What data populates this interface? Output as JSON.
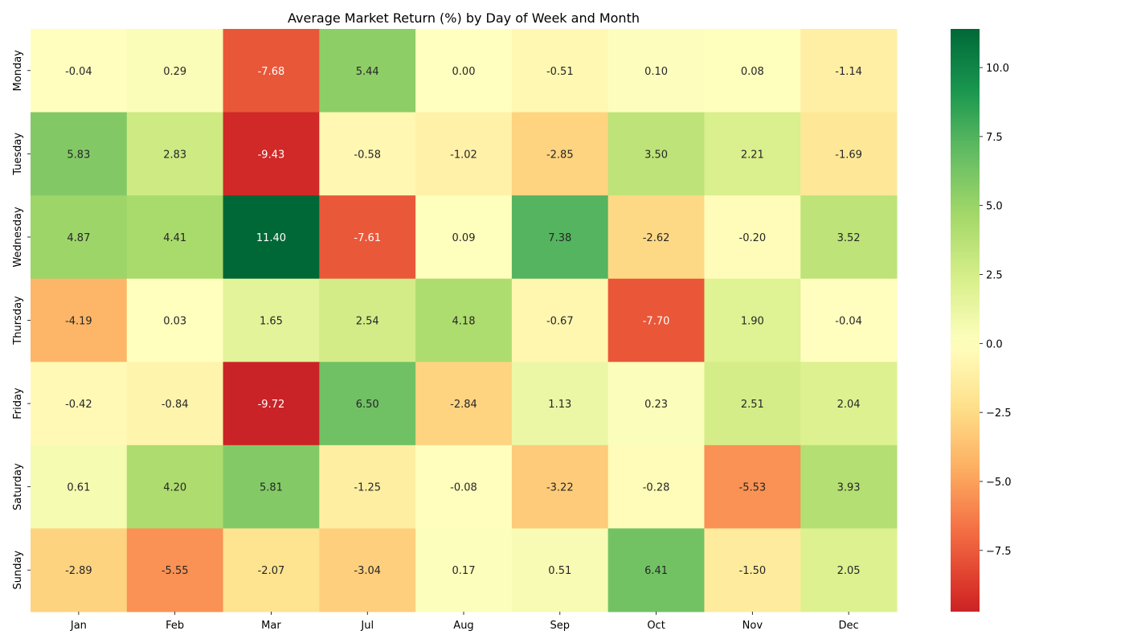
{
  "chart_data": {
    "type": "heatmap",
    "title": "Average Market Return (%) by Day of Week and Month",
    "xlabel": "",
    "ylabel": "",
    "x_categories": [
      "Jan",
      "Feb",
      "Mar",
      "Jul",
      "Aug",
      "Sep",
      "Oct",
      "Nov",
      "Dec"
    ],
    "y_categories": [
      "Monday",
      "Tuesday",
      "Wednesday",
      "Thursday",
      "Friday",
      "Saturday",
      "Sunday"
    ],
    "values": [
      [
        -0.04,
        0.29,
        -7.68,
        5.44,
        0.0,
        -0.51,
        0.1,
        0.08,
        -1.14
      ],
      [
        5.83,
        2.83,
        -9.43,
        -0.58,
        -1.02,
        -2.85,
        3.5,
        2.21,
        -1.69
      ],
      [
        4.87,
        4.41,
        11.4,
        -7.61,
        0.09,
        7.38,
        -2.62,
        -0.2,
        3.52
      ],
      [
        -4.19,
        0.03,
        1.65,
        2.54,
        4.18,
        -0.67,
        -7.7,
        1.9,
        -0.04
      ],
      [
        -0.42,
        -0.84,
        -9.72,
        6.5,
        -2.84,
        1.13,
        0.23,
        2.51,
        2.04
      ],
      [
        0.61,
        4.2,
        5.81,
        -1.25,
        -0.08,
        -3.22,
        -0.28,
        -5.53,
        3.93
      ],
      [
        -2.89,
        -5.55,
        -2.07,
        -3.04,
        0.17,
        0.51,
        6.41,
        -1.5,
        2.05
      ]
    ],
    "value_format": "0.00",
    "colormap": "RdYlGn",
    "center": 0,
    "colorbar": {
      "range": [
        -9.72,
        11.4
      ],
      "ticks": [
        -7.5,
        -5.0,
        -2.5,
        0.0,
        2.5,
        5.0,
        7.5,
        10.0
      ],
      "tick_labels": [
        "−7.5",
        "−5.0",
        "−2.5",
        "0.0",
        "2.5",
        "5.0",
        "7.5",
        "10.0"
      ]
    },
    "grid": false,
    "legend": "colorbar-right"
  }
}
